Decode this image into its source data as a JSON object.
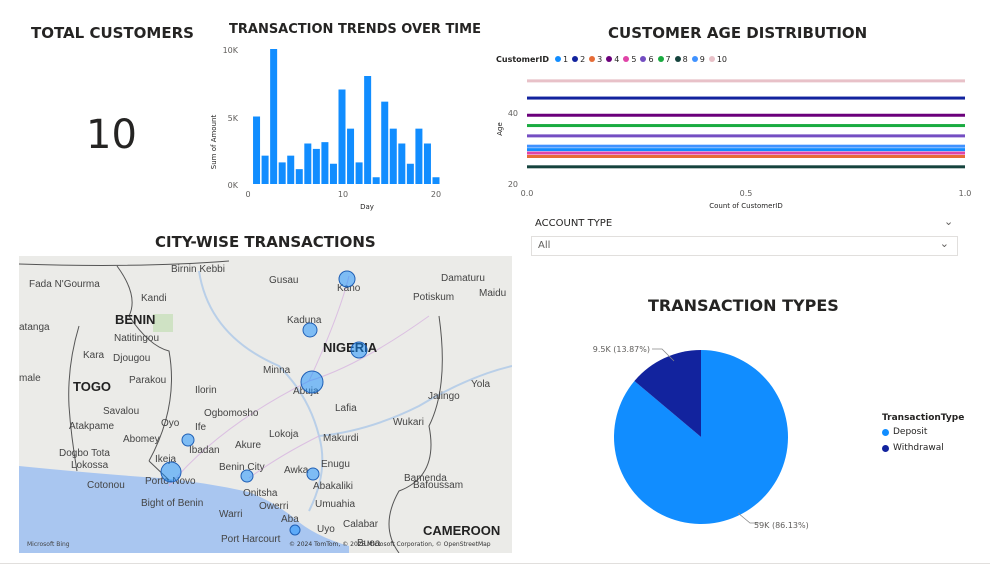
{
  "total_customers": {
    "title": "TOTAL CUSTOMERS",
    "value": "10"
  },
  "transaction_trends": {
    "title": "TRANSACTION TRENDS OVER TIME",
    "ylabel": "Sum of Amount",
    "xlabel": "Day",
    "yticks": [
      "10K",
      "5K",
      "0K"
    ],
    "xticks": [
      "0",
      "10",
      "20"
    ],
    "chart_data": {
      "type": "bar",
      "title": "TRANSACTION TRENDS OVER TIME",
      "xlabel": "Day",
      "ylabel": "Sum of Amount",
      "x": [
        1,
        2,
        3,
        4,
        5,
        6,
        7,
        8,
        9,
        10,
        11,
        12,
        13,
        14,
        15,
        16,
        17,
        18,
        19,
        20,
        21,
        22
      ],
      "values": [
        5000,
        2100,
        10000,
        1600,
        2100,
        1100,
        3000,
        2600,
        3100,
        1500,
        7000,
        4100,
        1600,
        8000,
        500,
        6100,
        4100,
        3000,
        1500,
        4100,
        3000,
        500
      ],
      "ylim": [
        0,
        10000
      ],
      "xlim": [
        0,
        22
      ],
      "color": "#118dff"
    }
  },
  "age_distribution": {
    "title": "CUSTOMER AGE DISTRIBUTION",
    "legend_title": "CustomerID",
    "ylabel": "Age",
    "xlabel": "Count of CustomerID",
    "yticks": [
      "40",
      "20"
    ],
    "xticks": [
      "0.0",
      "0.5",
      "1.0"
    ],
    "chart_data": {
      "type": "bar",
      "title": "CUSTOMER AGE DISTRIBUTION",
      "xlabel": "Count of CustomerID",
      "ylabel": "Age",
      "xlim": [
        0,
        1
      ],
      "ylim": [
        20,
        52
      ],
      "series": [
        {
          "name": "1",
          "color": "#118dff",
          "age": 30,
          "count": 1
        },
        {
          "name": "2",
          "color": "#12239e",
          "age": 45,
          "count": 1
        },
        {
          "name": "3",
          "color": "#e66c37",
          "age": 28,
          "count": 1
        },
        {
          "name": "4",
          "color": "#6b007b",
          "age": 40,
          "count": 1
        },
        {
          "name": "5",
          "color": "#e044a7",
          "age": 29,
          "count": 1
        },
        {
          "name": "6",
          "color": "#744ec2",
          "age": 34,
          "count": 1
        },
        {
          "name": "7",
          "color": "#1aab40",
          "age": 37,
          "count": 1
        },
        {
          "name": "8",
          "color": "#15433d",
          "age": 25,
          "count": 1
        },
        {
          "name": "9",
          "color": "#4092ff",
          "age": 31,
          "count": 1
        },
        {
          "name": "10",
          "color": "#e8c1c8",
          "age": 50,
          "count": 1
        }
      ]
    }
  },
  "city_map": {
    "title": "CITY-WISE TRANSACTIONS",
    "attribution": "© 2024 TomTom, © 2025 Microsoft Corporation, © OpenStreetMap",
    "logo": "Microsoft Bing",
    "labels": [
      "Birnin Kebbi",
      "Gusau",
      "Kano",
      "Damaturu",
      "Maidu",
      "Fada N'Gourma",
      "Kandi",
      "Potiskum",
      "BENIN",
      "Kaduna",
      "atanga",
      "Natitingou",
      "NIGERIA",
      "Kara",
      "Djougou",
      "Minna",
      "male",
      "TOGO",
      "Parakou",
      "Ilorin",
      "Abuja",
      "Yola",
      "Savalou",
      "Ogbomosho",
      "Lafia",
      "Jalingo",
      "Atakpame",
      "Oyo",
      "Ife",
      "Wukari",
      "Abomey",
      "Ibadan",
      "Akure",
      "Lokoja",
      "Makurdi",
      "Dogbo Tota",
      "Lokossa",
      "Ikeja",
      "Benin City",
      "Awka",
      "Enugu",
      "Cotonou",
      "Porto-Novo",
      "Abakaliki",
      "Bamenda",
      "Bight of Benin",
      "Onitsha",
      "Owerri",
      "Umuahia",
      "Warri",
      "Aba",
      "Uyo",
      "Calabar",
      "Bafoussam",
      "Port Harcourt",
      "Buea",
      "CAMEROON"
    ],
    "bubbles": [
      {
        "city": "Kano",
        "size": 8
      },
      {
        "city": "Kaduna",
        "size": 7
      },
      {
        "city": "Bauchi",
        "size": 8
      },
      {
        "city": "Abuja",
        "size": 11
      },
      {
        "city": "Ibadan",
        "size": 6
      },
      {
        "city": "Lagos",
        "size": 10
      },
      {
        "city": "Benin City",
        "size": 6
      },
      {
        "city": "Enugu",
        "size": 6
      },
      {
        "city": "Port Harcourt",
        "size": 5
      }
    ]
  },
  "account_type": {
    "label": "ACCOUNT TYPE",
    "selected": "All"
  },
  "transaction_types": {
    "title": "TRANSACTION TYPES",
    "legend_title": "TransactionType",
    "chart_data": {
      "type": "pie",
      "title": "TRANSACTION TYPES",
      "slices": [
        {
          "name": "Deposit",
          "value": 59000,
          "percent": 86.13,
          "label": "59K (86.13%)",
          "color": "#118dff"
        },
        {
          "name": "Withdrawal",
          "value": 9500,
          "percent": 13.87,
          "label": "9.5K (13.87%)",
          "color": "#12239e"
        }
      ]
    }
  }
}
